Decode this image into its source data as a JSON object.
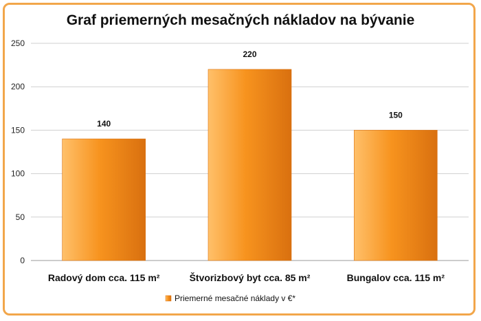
{
  "chart_data": {
    "type": "bar",
    "title": "Graf priemerných mesačných nákladov na bývanie",
    "categories": [
      "Radový dom cca. 115 m²",
      "Štvorizbový byt cca. 85 m²",
      "Bungalov cca. 115 m²"
    ],
    "series": [
      {
        "name": "Priemerné mesačné náklady v €*",
        "values": [
          140,
          220,
          150
        ]
      }
    ],
    "ylim": [
      0,
      250
    ],
    "yticks": [
      0,
      50,
      100,
      150,
      200,
      250
    ],
    "grid": true,
    "legend_position": "bottom"
  },
  "colors": {
    "bar_light": "#ffc06a",
    "bar_mid": "#f7931e",
    "bar_dark": "#d9700f",
    "frame": "#f2a64a",
    "grid": "#cfcfcf"
  }
}
